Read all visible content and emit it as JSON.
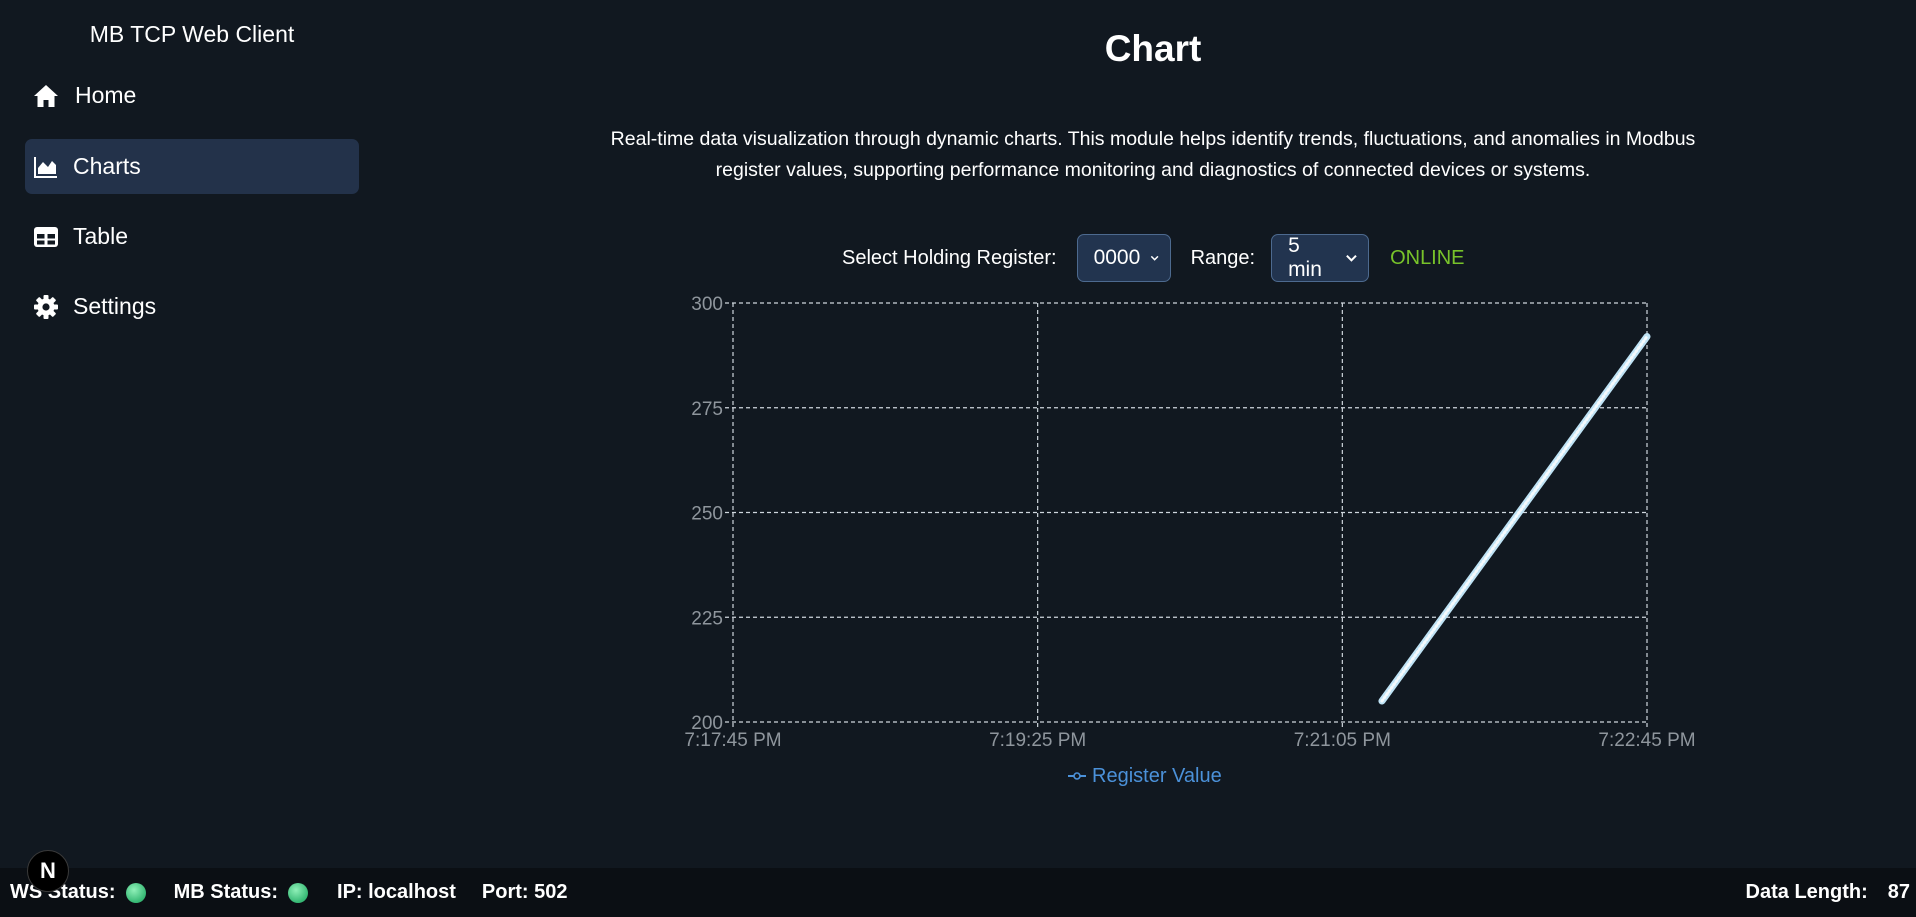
{
  "sidebar": {
    "brand": "MB TCP Web Client",
    "items": [
      {
        "label": "Home",
        "icon": "home-icon",
        "active": false
      },
      {
        "label": "Charts",
        "icon": "area-chart-icon",
        "active": true
      },
      {
        "label": "Table",
        "icon": "table-icon",
        "active": false
      },
      {
        "label": "Settings",
        "icon": "gear-icon",
        "active": false
      }
    ]
  },
  "main": {
    "title": "Chart",
    "description_line1": "Real-time data visualization through dynamic charts. This module helps identify trends, fluctuations, and anomalies in Modbus",
    "description_line2": "register values, supporting performance monitoring and diagnostics of connected devices or systems.",
    "controls": {
      "register_label": "Select Holding Register:",
      "register_value": "0000",
      "range_label": "Range:",
      "range_value": "5 min",
      "connection_status": "ONLINE"
    }
  },
  "chart_data": {
    "type": "line",
    "series": [
      {
        "name": "Register Value",
        "start": {
          "x": "7:21:18 PM",
          "y": 205
        },
        "end": {
          "x": "7:22:45 PM",
          "y": 292
        }
      }
    ],
    "x_tick_labels": [
      "7:17:45 PM",
      "7:19:25 PM",
      "7:21:05 PM",
      "7:22:45 PM"
    ],
    "y_tick_labels": [
      "300",
      "275",
      "250",
      "225",
      "200"
    ],
    "ylim": [
      200,
      300
    ],
    "grid": true,
    "legend_position": "bottom-center",
    "colors": {
      "line": "#bfe3f5",
      "legend": "#4b91d9",
      "grid": "#cfd6dd"
    }
  },
  "statusbar": {
    "ws_label": "WS Status:",
    "mb_label": "MB Status:",
    "ip_text": "IP: localhost",
    "port_text": "Port: 502",
    "data_length_label": "Data Length:",
    "data_length_value": "87"
  },
  "badge": {
    "letter": "N"
  }
}
